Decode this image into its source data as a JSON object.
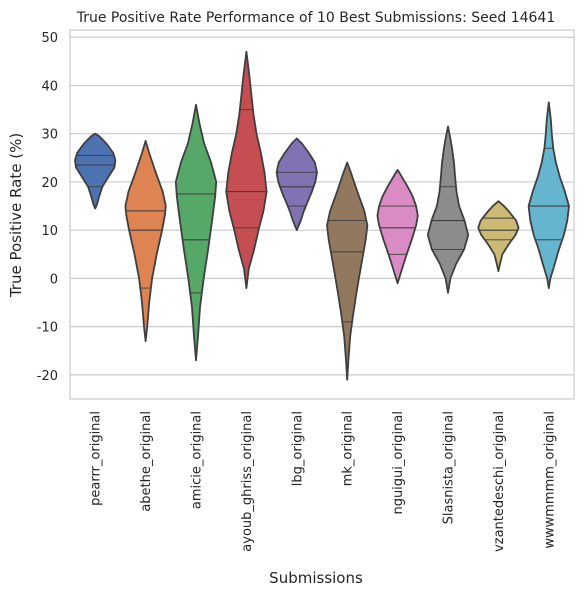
{
  "chart_data": {
    "type": "violin",
    "title": "True Positive Rate Performance of 10 Best Submissions: Seed 14641",
    "xlabel": "Submissions",
    "ylabel": "True Positive Rate (%)",
    "ylim": [
      -25,
      51.5
    ],
    "yticks": [
      -20,
      -10,
      0,
      10,
      20,
      30,
      40,
      50
    ],
    "grid": "horizontal",
    "inner": "quartile lines",
    "categories": [
      "pearrr_original",
      "abethe_original",
      "amicie_original",
      "ayoub_ghriss_original",
      "lbg_original",
      "mk_original",
      "nguigui_original",
      "Slasnista_original",
      "vzantedeschi_original",
      "wwwmmmm_original"
    ],
    "colors": [
      "#4c72b0",
      "#dd8452",
      "#55a868",
      "#c44e52",
      "#8172b3",
      "#937860",
      "#da8bc3",
      "#8c8c8c",
      "#ccb974",
      "#64b5cd"
    ],
    "violins": [
      {
        "min": 14.5,
        "q1": 19,
        "median": 23.5,
        "q3": 25.5,
        "max": 30,
        "profile": [
          [
            14.5,
            0
          ],
          [
            15.5,
            0.1
          ],
          [
            17,
            0.2
          ],
          [
            19,
            0.35
          ],
          [
            21,
            0.65
          ],
          [
            23,
            0.95
          ],
          [
            24.5,
            1
          ],
          [
            26,
            0.9
          ],
          [
            28,
            0.55
          ],
          [
            29.5,
            0.2
          ],
          [
            30,
            0
          ]
        ]
      },
      {
        "min": -13,
        "q1": -2,
        "median": 10,
        "q3": 14,
        "max": 28.5,
        "profile": [
          [
            -13,
            0
          ],
          [
            -10,
            0.08
          ],
          [
            -5,
            0.18
          ],
          [
            0,
            0.32
          ],
          [
            5,
            0.55
          ],
          [
            10,
            0.82
          ],
          [
            13,
            0.95
          ],
          [
            15,
            1
          ],
          [
            18,
            0.85
          ],
          [
            22,
            0.5
          ],
          [
            26,
            0.18
          ],
          [
            28.5,
            0
          ]
        ]
      },
      {
        "min": -17,
        "q1": -3,
        "median": 8,
        "q3": 17.5,
        "max": 36,
        "profile": [
          [
            -17,
            0
          ],
          [
            -12,
            0.1
          ],
          [
            -6,
            0.2
          ],
          [
            0,
            0.38
          ],
          [
            6,
            0.6
          ],
          [
            12,
            0.8
          ],
          [
            17,
            0.95
          ],
          [
            20,
            1
          ],
          [
            24,
            0.75
          ],
          [
            28,
            0.4
          ],
          [
            32,
            0.18
          ],
          [
            36,
            0
          ]
        ]
      },
      {
        "min": -2,
        "q1": 10.5,
        "median": 18,
        "q3": 35,
        "max": 47,
        "profile": [
          [
            -2,
            0
          ],
          [
            2,
            0.12
          ],
          [
            6,
            0.38
          ],
          [
            10,
            0.6
          ],
          [
            14,
            0.85
          ],
          [
            18,
            1
          ],
          [
            22,
            0.9
          ],
          [
            26,
            0.72
          ],
          [
            30,
            0.5
          ],
          [
            34,
            0.35
          ],
          [
            38,
            0.25
          ],
          [
            42,
            0.15
          ],
          [
            47,
            0
          ]
        ]
      },
      {
        "min": 10,
        "q1": 15,
        "median": 19,
        "q3": 22,
        "max": 29,
        "profile": [
          [
            10,
            0
          ],
          [
            12,
            0.2
          ],
          [
            14,
            0.35
          ],
          [
            16,
            0.55
          ],
          [
            18,
            0.75
          ],
          [
            20,
            0.92
          ],
          [
            22,
            1
          ],
          [
            24,
            0.9
          ],
          [
            26,
            0.6
          ],
          [
            28,
            0.25
          ],
          [
            29,
            0
          ]
        ]
      },
      {
        "min": -21,
        "q1": -9,
        "median": 5.5,
        "q3": 12,
        "max": 24,
        "profile": [
          [
            -21,
            0
          ],
          [
            -17,
            0.06
          ],
          [
            -12,
            0.15
          ],
          [
            -8,
            0.28
          ],
          [
            -4,
            0.42
          ],
          [
            0,
            0.58
          ],
          [
            4,
            0.75
          ],
          [
            8,
            0.92
          ],
          [
            11,
            1
          ],
          [
            14,
            0.85
          ],
          [
            18,
            0.5
          ],
          [
            22,
            0.18
          ],
          [
            24,
            0
          ]
        ]
      },
      {
        "min": -1,
        "q1": 5,
        "median": 10.5,
        "q3": 15,
        "max": 22.5,
        "profile": [
          [
            -1,
            0
          ],
          [
            1,
            0.15
          ],
          [
            3,
            0.3
          ],
          [
            5,
            0.45
          ],
          [
            8,
            0.7
          ],
          [
            11,
            0.92
          ],
          [
            13,
            1
          ],
          [
            15,
            0.92
          ],
          [
            17,
            0.75
          ],
          [
            19,
            0.5
          ],
          [
            21,
            0.22
          ],
          [
            22.5,
            0
          ]
        ]
      },
      {
        "min": -3,
        "q1": 6,
        "median": 12,
        "q3": 19,
        "max": 31.5,
        "profile": [
          [
            -3,
            0
          ],
          [
            0,
            0.12
          ],
          [
            3,
            0.4
          ],
          [
            6,
            0.8
          ],
          [
            9,
            1
          ],
          [
            12,
            0.82
          ],
          [
            15,
            0.55
          ],
          [
            18,
            0.42
          ],
          [
            21,
            0.35
          ],
          [
            24,
            0.3
          ],
          [
            27,
            0.2
          ],
          [
            29,
            0.12
          ],
          [
            31.5,
            0
          ]
        ]
      },
      {
        "min": 1.5,
        "q1": 8,
        "median": 10,
        "q3": 12.5,
        "max": 16,
        "profile": [
          [
            1.5,
            0
          ],
          [
            3,
            0.08
          ],
          [
            5,
            0.2
          ],
          [
            7,
            0.5
          ],
          [
            9,
            0.85
          ],
          [
            10.5,
            1
          ],
          [
            12,
            0.88
          ],
          [
            14,
            0.5
          ],
          [
            15,
            0.28
          ],
          [
            16,
            0
          ]
        ]
      },
      {
        "min": -2,
        "q1": 8,
        "median": 15,
        "q3": 27,
        "max": 36.5,
        "profile": [
          [
            -2,
            0
          ],
          [
            0,
            0.08
          ],
          [
            3,
            0.3
          ],
          [
            6,
            0.5
          ],
          [
            9,
            0.75
          ],
          [
            12,
            0.92
          ],
          [
            15,
            1
          ],
          [
            18,
            0.8
          ],
          [
            21,
            0.55
          ],
          [
            24,
            0.35
          ],
          [
            27,
            0.22
          ],
          [
            30,
            0.15
          ],
          [
            33,
            0.1
          ],
          [
            36.5,
            0
          ]
        ]
      }
    ]
  }
}
